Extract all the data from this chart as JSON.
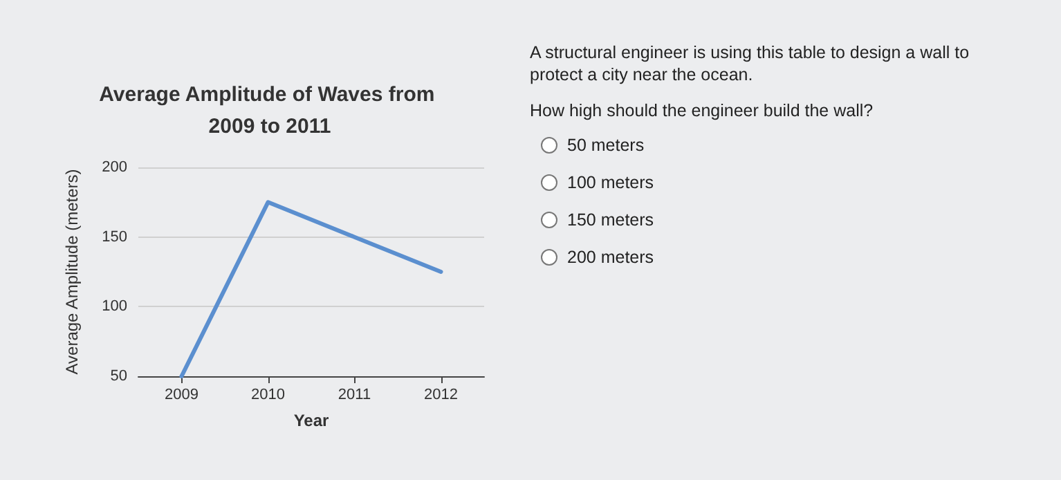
{
  "chart_data": {
    "type": "line",
    "title": "Average Amplitude of Waves from 2009 to 2011",
    "xlabel": "Year",
    "ylabel": "Average Amplitude (meters)",
    "x": [
      2009,
      2010,
      2011,
      2012
    ],
    "series": [
      {
        "color": "#5b8fcf",
        "values": [
          50,
          175,
          150,
          125
        ]
      }
    ],
    "xlim": [
      2008.5,
      2012.5
    ],
    "xticks": [
      2009,
      2010,
      2011,
      2012
    ],
    "ylim": [
      50,
      200
    ],
    "yticks": [
      50,
      100,
      150,
      200
    ],
    "grid": "y",
    "marker": "none",
    "line_style": "solid",
    "annotations": [
      "A structural engineer is using this table to design a wall to protect a city near the ocean.",
      "How high should the engineer build the wall?",
      "50 meters",
      "100 meters",
      "150 meters",
      "200 meters"
    ]
  }
}
